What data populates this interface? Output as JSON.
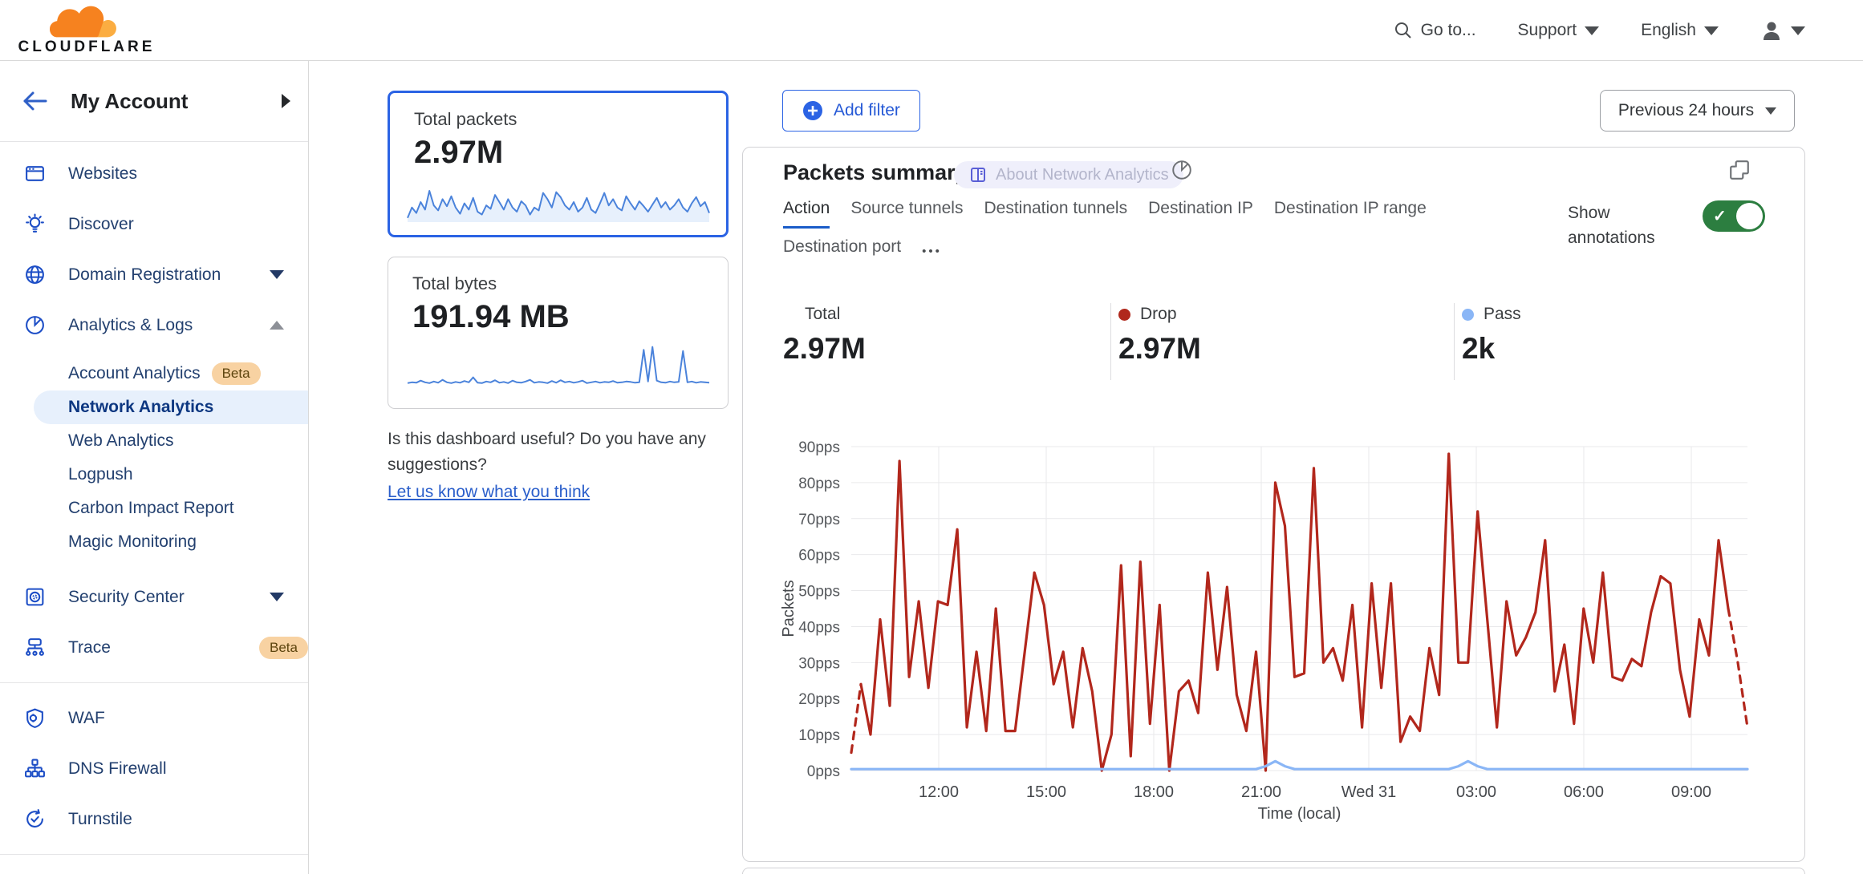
{
  "brand": {
    "name": "CLOUDFLARE"
  },
  "header": {
    "goto": "Go to...",
    "support": "Support",
    "language": "English"
  },
  "sidebar": {
    "account_label": "My Account",
    "items": [
      {
        "label": "Websites"
      },
      {
        "label": "Discover"
      },
      {
        "label": "Domain Registration"
      },
      {
        "label": "Analytics & Logs"
      }
    ],
    "analytics_children": [
      {
        "label": "Account Analytics",
        "badge": "Beta"
      },
      {
        "label": "Network Analytics",
        "selected": true
      },
      {
        "label": "Web Analytics"
      },
      {
        "label": "Logpush"
      },
      {
        "label": "Carbon Impact Report"
      },
      {
        "label": "Magic Monitoring"
      }
    ],
    "items2": [
      {
        "label": "Security Center"
      },
      {
        "label": "Trace",
        "badge": "Beta"
      }
    ],
    "items3": [
      {
        "label": "WAF"
      },
      {
        "label": "DNS Firewall"
      },
      {
        "label": "Turnstile"
      }
    ]
  },
  "summary_cards": [
    {
      "title": "Total packets",
      "value": "2.97M"
    },
    {
      "title": "Total bytes",
      "value": "191.94 MB"
    }
  ],
  "feedback": {
    "line1": "Is this dashboard useful? Do you have any",
    "line2": "suggestions?",
    "link": "Let us know what you think"
  },
  "toolbar": {
    "add_filter": "Add filter",
    "time_range": "Previous 24 hours"
  },
  "panel": {
    "title": "Packets summary",
    "badge": "About Network Analytics",
    "tabs": [
      "Action",
      "Source tunnels",
      "Destination tunnels",
      "Destination IP",
      "Destination IP range",
      "Destination port"
    ],
    "more_label": "•••",
    "show_annotations": "Show annotations",
    "stats": [
      {
        "label": "Total",
        "value": "2.97M",
        "dot": null
      },
      {
        "label": "Drop",
        "value": "2.97M",
        "dot": "#b0281c"
      },
      {
        "label": "Pass",
        "value": "2k",
        "dot": "#8ab6f6"
      }
    ]
  },
  "colors": {
    "accent_blue": "#2b63e4",
    "drop_red": "#b2271c",
    "pass_blue": "#8ab6f6",
    "toggle_green": "#2c7e40",
    "spark_blue": "#4b83db"
  },
  "chart_data": {
    "type": "line",
    "title": "Packets summary",
    "xlabel": "Time (local)",
    "ylabel": "Packets",
    "ylim": [
      0,
      90
    ],
    "grid": true,
    "legend_position": "none",
    "y_ticks": [
      "0pps",
      "10pps",
      "20pps",
      "30pps",
      "40pps",
      "50pps",
      "60pps",
      "70pps",
      "80pps",
      "90pps"
    ],
    "x_ticks": [
      "12:00",
      "15:00",
      "18:00",
      "21:00",
      "Wed 31",
      "03:00",
      "06:00",
      "09:00"
    ],
    "series": [
      {
        "name": "Drop",
        "color": "#b2271c",
        "dashed_head": 1,
        "dashed_tail": 2,
        "values": [
          5,
          24,
          10,
          42,
          18,
          86,
          26,
          47,
          23,
          47,
          46,
          67,
          12,
          33,
          11,
          45,
          11,
          11,
          33,
          55,
          46,
          24,
          33,
          12,
          34,
          22,
          0,
          10,
          57,
          4,
          58,
          13,
          46,
          0,
          22,
          25,
          16,
          55,
          28,
          51,
          21,
          11,
          33,
          0,
          80,
          68,
          26,
          27,
          84,
          30,
          34,
          25,
          46,
          12,
          52,
          23,
          52,
          8,
          15,
          11,
          34,
          21,
          88,
          30,
          30,
          72,
          42,
          12,
          47,
          32,
          37,
          44,
          64,
          22,
          35,
          13,
          45,
          30,
          55,
          26,
          25,
          31,
          29,
          44,
          54,
          52,
          28,
          15,
          42,
          32,
          64,
          45,
          30,
          12
        ]
      },
      {
        "name": "Pass",
        "color": "#8ab6f6",
        "dashed_head": 0,
        "dashed_tail": 0,
        "values": [
          0.4,
          0.4,
          0.4,
          0.4,
          0.4,
          0.4,
          0.4,
          0.4,
          0.4,
          0.4,
          0.4,
          0.4,
          0.4,
          0.4,
          0.4,
          0.4,
          0.4,
          0.4,
          0.4,
          0.4,
          0.4,
          0.4,
          0.4,
          0.4,
          0.4,
          0.4,
          0.4,
          0.4,
          0.4,
          0.4,
          0.4,
          0.4,
          0.4,
          0.4,
          0.4,
          0.4,
          0.4,
          0.4,
          0.4,
          0.4,
          0.4,
          0.4,
          0.4,
          1.2,
          2.6,
          1.2,
          0.4,
          0.4,
          0.4,
          0.4,
          0.4,
          0.4,
          0.4,
          0.4,
          0.4,
          0.4,
          0.4,
          0.4,
          0.4,
          0.4,
          0.4,
          0.4,
          0.4,
          1.2,
          2.6,
          1.2,
          0.4,
          0.4,
          0.4,
          0.4,
          0.4,
          0.4,
          0.4,
          0.4,
          0.4,
          0.4,
          0.4,
          0.4,
          0.4,
          0.4,
          0.4,
          0.4,
          0.4,
          0.4,
          0.4,
          0.4,
          0.4,
          0.4,
          0.4,
          0.4,
          0.4,
          0.4,
          0.4,
          0.4
        ]
      }
    ],
    "sparklines": [
      {
        "name": "Total packets",
        "values": [
          10,
          35,
          22,
          48,
          30,
          75,
          40,
          28,
          55,
          38,
          62,
          35,
          20,
          45,
          30,
          58,
          25,
          18,
          40,
          32,
          65,
          48,
          30,
          55,
          35,
          25,
          50,
          40,
          18,
          35,
          28,
          70,
          55,
          35,
          72,
          60,
          40,
          30,
          48,
          25,
          35,
          58,
          30,
          22,
          45,
          70,
          40,
          55,
          35,
          28,
          62,
          45,
          30,
          50,
          38,
          25,
          42,
          58,
          35,
          48,
          30,
          40,
          55,
          35,
          25,
          45,
          60,
          38,
          48,
          22
        ]
      },
      {
        "name": "Total bytes",
        "values": [
          8,
          10,
          9,
          14,
          10,
          8,
          12,
          9,
          16,
          10,
          8,
          11,
          9,
          13,
          10,
          22,
          9,
          8,
          12,
          10,
          15,
          9,
          11,
          8,
          14,
          10,
          9,
          12,
          16,
          9,
          11,
          10,
          8,
          13,
          9,
          15,
          10,
          12,
          9,
          11,
          14,
          8,
          10,
          12,
          9,
          11,
          10,
          13,
          9,
          10,
          12,
          11,
          9,
          10,
          88,
          12,
          95,
          14,
          10,
          9,
          12,
          10,
          11,
          85,
          10,
          12,
          9,
          11,
          10,
          9
        ]
      }
    ]
  }
}
